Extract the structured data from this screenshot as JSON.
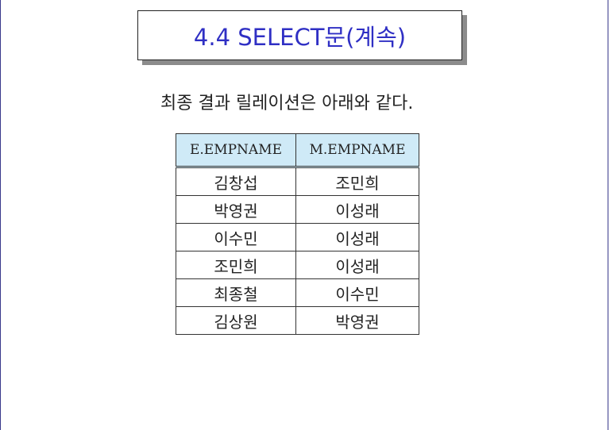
{
  "title": "4.4 SELECT문(계속)",
  "caption": "최종 결과 릴레이션은 아래와 같다.",
  "table": {
    "headers": [
      "E.EMPNAME",
      "M.EMPNAME"
    ],
    "rows": [
      [
        "김창섭",
        "조민희"
      ],
      [
        "박영권",
        "이성래"
      ],
      [
        "이수민",
        "이성래"
      ],
      [
        "조민희",
        "이성래"
      ],
      [
        "최종철",
        "이수민"
      ],
      [
        "김상원",
        "박영권"
      ]
    ]
  },
  "colors": {
    "title": "#2f2fc4",
    "header_bg": "#cfeaf7",
    "shadow": "#8c8c8c"
  }
}
